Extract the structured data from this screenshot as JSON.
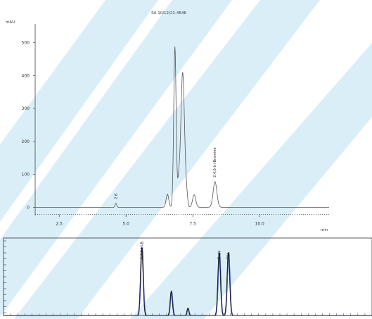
{
  "watermark_color": "#cde8f6",
  "chart_data": [
    {
      "type": "line",
      "title": "SA 10/12/21-4546",
      "ylabel": "mAU",
      "xlabel": "min",
      "xlim": [
        1.6,
        12.6
      ],
      "ylim": [
        -12,
        540
      ],
      "x_ticks": [
        "2.5",
        "5.0",
        "7.5",
        "10.0"
      ],
      "x_tick_values": [
        2.5,
        5.0,
        7.5,
        10.0
      ],
      "y_ticks": [
        "0",
        "100",
        "200",
        "300",
        "400",
        "500"
      ],
      "y_tick_values": [
        0,
        100,
        200,
        300,
        400,
        500
      ],
      "line_color": "#555555",
      "peaks": [
        {
          "t": 4.62,
          "h": 12,
          "w": 0.03
        },
        {
          "t": 6.55,
          "h": 40,
          "w": 0.05
        },
        {
          "t": 6.83,
          "h": 488,
          "w": 0.045
        },
        {
          "t": 6.97,
          "h": 65,
          "w": 0.04
        },
        {
          "t": 7.12,
          "h": 410,
          "w": 0.07
        },
        {
          "t": 7.27,
          "h": 28,
          "w": 0.04
        },
        {
          "t": 7.55,
          "h": 38,
          "w": 0.06
        },
        {
          "t": 8.33,
          "h": 78,
          "w": 0.07
        }
      ],
      "annotations": [
        {
          "t": 4.62,
          "h": 12,
          "text": "2.6"
        },
        {
          "t": 8.33,
          "h": 78,
          "text": "2,4,6-tri-Bromine"
        }
      ]
    },
    {
      "type": "line",
      "xlim": [
        0,
        10
      ],
      "ylim": [
        0,
        1
      ],
      "line_color": "#000000",
      "overlay_color": "#2b3a9a",
      "peaks": [
        {
          "t": 3.75,
          "h": 0.93,
          "w": 0.035
        },
        {
          "t": 4.55,
          "h": 0.33,
          "w": 0.03
        },
        {
          "t": 5.0,
          "h": 0.1,
          "w": 0.025
        },
        {
          "t": 5.85,
          "h": 0.86,
          "w": 0.035
        },
        {
          "t": 6.1,
          "h": 0.86,
          "w": 0.035
        }
      ],
      "annotations": [
        {
          "t": 3.75,
          "text": "2,4,6-tri-B"
        },
        {
          "t": 5.85,
          "text": "B-chl"
        },
        {
          "t": 6.1,
          "text": "TBA"
        }
      ]
    }
  ]
}
